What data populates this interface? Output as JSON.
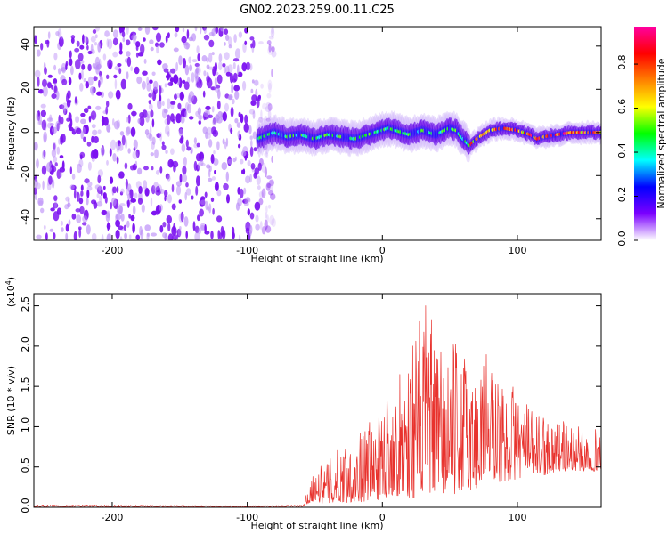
{
  "figure_title": "GN02.2023.259.00.11.C25",
  "chart_data": [
    {
      "type": "heatmap",
      "title": "",
      "xlabel": "Height of straight line (km)",
      "ylabel": "Frequency (Hz)",
      "xlim": [
        -258,
        162
      ],
      "ylim": [
        -50,
        49
      ],
      "xticks": [
        -200,
        -100,
        0,
        100
      ],
      "yticks": [
        -40,
        -20,
        0,
        20,
        40
      ],
      "xtick_labels": [
        "-200",
        "-100",
        "0",
        "100"
      ],
      "ytick_labels": [
        "-40",
        "-20",
        "0",
        "20",
        "40"
      ],
      "noise_region_x": [
        -258,
        -80
      ],
      "signal_region_x": [
        -92,
        162
      ],
      "signal_center_track": {
        "x": [
          -92,
          -80,
          -70,
          -60,
          -50,
          -40,
          -30,
          -20,
          -10,
          0,
          5,
          10,
          20,
          30,
          40,
          50,
          55,
          60,
          65,
          70,
          80,
          90,
          100,
          110,
          115,
          120,
          130,
          140,
          150,
          162
        ],
        "y": [
          -3,
          0,
          -2,
          -1,
          -3,
          -1,
          -2,
          -3,
          -1,
          1,
          2,
          1,
          -1,
          1,
          -1,
          2,
          1,
          -3,
          -6,
          -3,
          1,
          2,
          1,
          -1,
          -3,
          -2,
          -1,
          0,
          0,
          0
        ]
      },
      "colorbar": {
        "label": "Normalized spectral amplitude",
        "range": [
          0,
          0.97
        ],
        "ticks": [
          0.0,
          0.2,
          0.4,
          0.6,
          0.8
        ],
        "tick_labels": [
          "0.0",
          "0.2",
          "0.4",
          "0.6",
          "0.8"
        ],
        "colors": [
          "#ffffff",
          "#7b00ff",
          "#0000ff",
          "#00ffff",
          "#00ff00",
          "#ffff00",
          "#ff8000",
          "#ff0000",
          "#ff00a0"
        ]
      },
      "grid": false
    },
    {
      "type": "line",
      "title": "",
      "xlabel": "Height of straight line (km)",
      "ylabel": "SNR (10 * v/v)",
      "scale_label": "(x10",
      "scale_exp": "4",
      "scale_close": ")",
      "xlim": [
        -258,
        162
      ],
      "ylim": [
        0,
        2.65
      ],
      "xticks": [
        -200,
        -100,
        0,
        100
      ],
      "yticks": [
        0.0,
        0.5,
        1.0,
        1.5,
        2.0,
        2.5
      ],
      "xtick_labels": [
        "-200",
        "-100",
        "0",
        "100"
      ],
      "ytick_labels": [
        "0.0",
        "0.5",
        "1.0",
        "1.5",
        "2.0",
        "2.5"
      ],
      "series": [
        {
          "color": "#e8322d",
          "envelope_x": [
            -258,
            -200,
            -100,
            -60,
            -58,
            -55,
            -50,
            -45,
            -40,
            -30,
            -20,
            -10,
            0,
            5,
            10,
            20,
            30,
            33,
            40,
            50,
            60,
            70,
            75,
            80,
            90,
            100,
            110,
            120,
            130,
            140,
            150,
            162
          ],
          "envelope_max": [
            0.03,
            0.03,
            0.02,
            0.03,
            0.12,
            0.22,
            0.5,
            0.52,
            0.58,
            0.8,
            0.85,
            1.1,
            1.2,
            1.75,
            1.45,
            2.15,
            2.4,
            2.65,
            2.0,
            2.05,
            2.0,
            1.7,
            2.2,
            1.85,
            1.5,
            1.55,
            1.2,
            1.15,
            1.1,
            1.05,
            0.98,
            0.98
          ],
          "envelope_min": [
            0.0,
            0.0,
            0.0,
            0.0,
            0.02,
            0.05,
            0.08,
            0.05,
            0.05,
            0.06,
            0.06,
            0.08,
            0.1,
            0.15,
            0.15,
            0.1,
            0.15,
            0.2,
            0.15,
            0.15,
            0.2,
            0.2,
            0.35,
            0.35,
            0.3,
            0.35,
            0.4,
            0.4,
            0.45,
            0.45,
            0.45,
            0.45
          ]
        }
      ],
      "grid": false
    }
  ]
}
